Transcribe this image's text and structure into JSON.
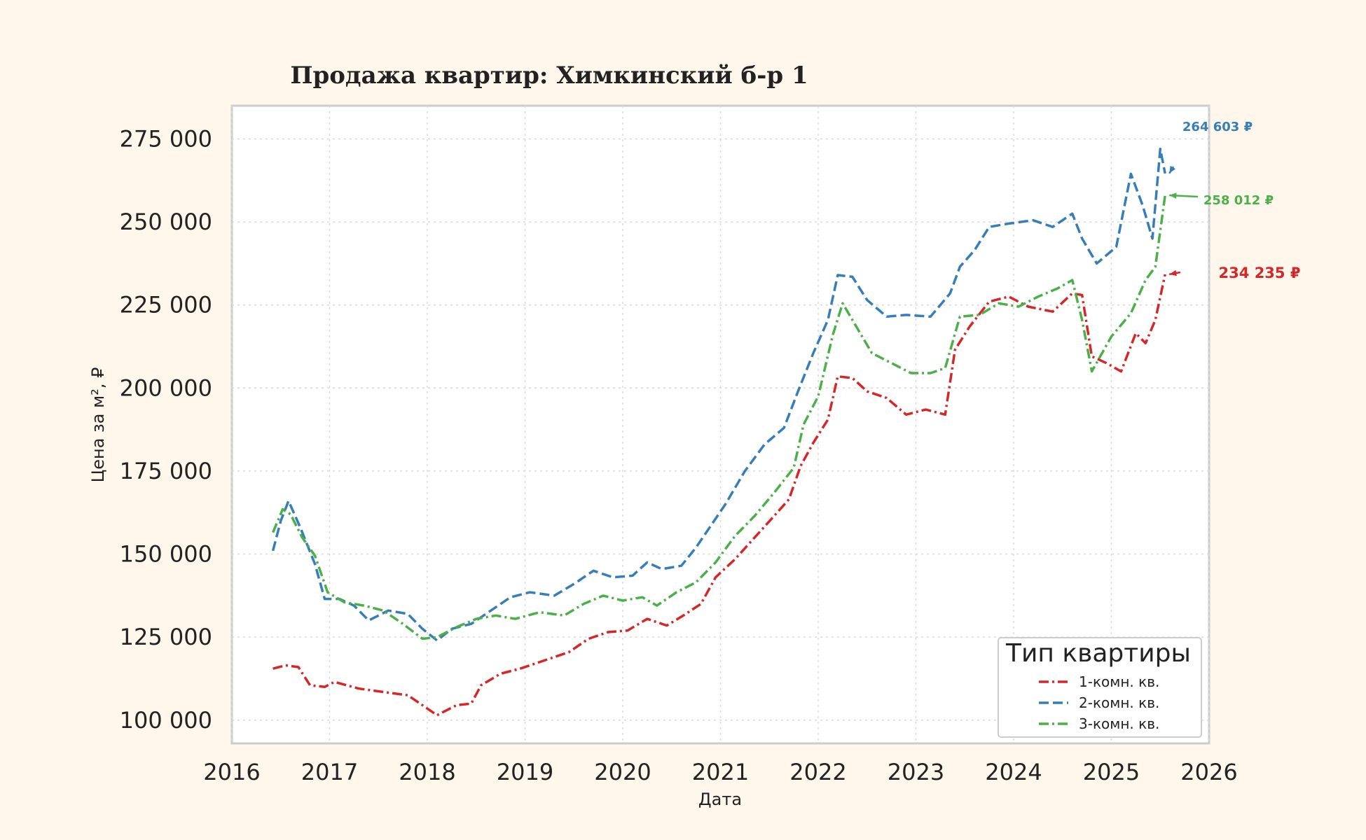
{
  "chart_data": {
    "type": "line",
    "title": "Продажа квартир: Химкинский б-р 1",
    "xlabel": "Дата",
    "ylabel": "Цена за м², ₽",
    "xlim": [
      2016,
      2026
    ],
    "ylim": [
      93000,
      285000
    ],
    "x_ticks": [
      "2016",
      "2017",
      "2018",
      "2019",
      "2020",
      "2021",
      "2022",
      "2023",
      "2024",
      "2025",
      "2026"
    ],
    "y_ticks": [
      "100 000",
      "125 000",
      "150 000",
      "175 000",
      "200 000",
      "225 000",
      "250 000",
      "275 000"
    ],
    "grid": true,
    "legend": {
      "title": "Тип квартиры",
      "placement": "bottom-right",
      "entries": [
        "1-комн. кв.",
        "2-комн. кв.",
        "3-комн. кв."
      ]
    },
    "series": [
      {
        "name": "1-комн. кв.",
        "color": "#d62728",
        "dash": "dashdot",
        "points": [
          [
            2016.42,
            115500
          ],
          [
            2016.55,
            116500
          ],
          [
            2016.68,
            116000
          ],
          [
            2016.8,
            110500
          ],
          [
            2016.95,
            110000
          ],
          [
            2017.05,
            111500
          ],
          [
            2017.3,
            109500
          ],
          [
            2017.55,
            108500
          ],
          [
            2017.8,
            107500
          ],
          [
            2017.95,
            104500
          ],
          [
            2018.1,
            101500
          ],
          [
            2018.3,
            104500
          ],
          [
            2018.45,
            105000
          ],
          [
            2018.55,
            110500
          ],
          [
            2018.75,
            114000
          ],
          [
            2018.95,
            115500
          ],
          [
            2019.2,
            118000
          ],
          [
            2019.45,
            120500
          ],
          [
            2019.65,
            124500
          ],
          [
            2019.85,
            126500
          ],
          [
            2020.05,
            127000
          ],
          [
            2020.25,
            130500
          ],
          [
            2020.45,
            128500
          ],
          [
            2020.62,
            131500
          ],
          [
            2020.8,
            135000
          ],
          [
            2020.95,
            143000
          ],
          [
            2021.15,
            148500
          ],
          [
            2021.35,
            155000
          ],
          [
            2021.55,
            161500
          ],
          [
            2021.7,
            166500
          ],
          [
            2021.82,
            176500
          ],
          [
            2021.95,
            183500
          ],
          [
            2022.1,
            190500
          ],
          [
            2022.2,
            203500
          ],
          [
            2022.35,
            203000
          ],
          [
            2022.5,
            199000
          ],
          [
            2022.7,
            197000
          ],
          [
            2022.9,
            192000
          ],
          [
            2023.1,
            193500
          ],
          [
            2023.3,
            192000
          ],
          [
            2023.4,
            211500
          ],
          [
            2023.55,
            218500
          ],
          [
            2023.75,
            226000
          ],
          [
            2023.95,
            227500
          ],
          [
            2024.15,
            224500
          ],
          [
            2024.4,
            223000
          ],
          [
            2024.6,
            228500
          ],
          [
            2024.7,
            228000
          ],
          [
            2024.8,
            209500
          ],
          [
            2024.95,
            207500
          ],
          [
            2025.1,
            205000
          ],
          [
            2025.25,
            216500
          ],
          [
            2025.35,
            213500
          ],
          [
            2025.45,
            220500
          ],
          [
            2025.55,
            234235
          ]
        ]
      },
      {
        "name": "2-комн. кв.",
        "color": "#377eb8",
        "dash": "dashed",
        "points": [
          [
            2016.42,
            151000
          ],
          [
            2016.5,
            160000
          ],
          [
            2016.58,
            166000
          ],
          [
            2016.7,
            158000
          ],
          [
            2016.85,
            147000
          ],
          [
            2016.95,
            136500
          ],
          [
            2017.1,
            136500
          ],
          [
            2017.25,
            134500
          ],
          [
            2017.4,
            130000
          ],
          [
            2017.6,
            133000
          ],
          [
            2017.8,
            132000
          ],
          [
            2017.95,
            127500
          ],
          [
            2018.1,
            124000
          ],
          [
            2018.25,
            127500
          ],
          [
            2018.45,
            129000
          ],
          [
            2018.65,
            133000
          ],
          [
            2018.85,
            137000
          ],
          [
            2019.05,
            138500
          ],
          [
            2019.3,
            137500
          ],
          [
            2019.5,
            141000
          ],
          [
            2019.7,
            145000
          ],
          [
            2019.9,
            143000
          ],
          [
            2020.1,
            143500
          ],
          [
            2020.25,
            147500
          ],
          [
            2020.4,
            145500
          ],
          [
            2020.6,
            146500
          ],
          [
            2020.75,
            152000
          ],
          [
            2020.9,
            158500
          ],
          [
            2021.05,
            165000
          ],
          [
            2021.25,
            175000
          ],
          [
            2021.45,
            183000
          ],
          [
            2021.65,
            188000
          ],
          [
            2021.8,
            199500
          ],
          [
            2021.95,
            210500
          ],
          [
            2022.1,
            220500
          ],
          [
            2022.2,
            234000
          ],
          [
            2022.35,
            233500
          ],
          [
            2022.5,
            226500
          ],
          [
            2022.7,
            221500
          ],
          [
            2022.9,
            222000
          ],
          [
            2023.15,
            221500
          ],
          [
            2023.35,
            228500
          ],
          [
            2023.45,
            236500
          ],
          [
            2023.6,
            241500
          ],
          [
            2023.75,
            248500
          ],
          [
            2023.95,
            249500
          ],
          [
            2024.2,
            250500
          ],
          [
            2024.4,
            248500
          ],
          [
            2024.6,
            252500
          ],
          [
            2024.7,
            245000
          ],
          [
            2024.85,
            237500
          ],
          [
            2025.05,
            242500
          ],
          [
            2025.2,
            264500
          ],
          [
            2025.32,
            255000
          ],
          [
            2025.42,
            245000
          ],
          [
            2025.5,
            272000
          ],
          [
            2025.55,
            264603
          ]
        ]
      },
      {
        "name": "3-комн. кв.",
        "color": "#4daf4a",
        "dash": "dashdot",
        "points": [
          [
            2016.42,
            156500
          ],
          [
            2016.52,
            163500
          ],
          [
            2016.6,
            162000
          ],
          [
            2016.72,
            155000
          ],
          [
            2016.85,
            149500
          ],
          [
            2016.98,
            138500
          ],
          [
            2017.15,
            135500
          ],
          [
            2017.35,
            134500
          ],
          [
            2017.55,
            133000
          ],
          [
            2017.75,
            129000
          ],
          [
            2017.95,
            124500
          ],
          [
            2018.1,
            125000
          ],
          [
            2018.3,
            128000
          ],
          [
            2018.5,
            130500
          ],
          [
            2018.7,
            131500
          ],
          [
            2018.9,
            130500
          ],
          [
            2019.15,
            132500
          ],
          [
            2019.4,
            131500
          ],
          [
            2019.6,
            135000
          ],
          [
            2019.8,
            137500
          ],
          [
            2020.0,
            136000
          ],
          [
            2020.2,
            137000
          ],
          [
            2020.35,
            134500
          ],
          [
            2020.55,
            138500
          ],
          [
            2020.75,
            141500
          ],
          [
            2020.95,
            147500
          ],
          [
            2021.15,
            155500
          ],
          [
            2021.35,
            161500
          ],
          [
            2021.55,
            168500
          ],
          [
            2021.75,
            176000
          ],
          [
            2021.85,
            189000
          ],
          [
            2022.0,
            197500
          ],
          [
            2022.15,
            216000
          ],
          [
            2022.25,
            225500
          ],
          [
            2022.4,
            218000
          ],
          [
            2022.55,
            210500
          ],
          [
            2022.75,
            207500
          ],
          [
            2022.95,
            204500
          ],
          [
            2023.15,
            204500
          ],
          [
            2023.3,
            206000
          ],
          [
            2023.45,
            221500
          ],
          [
            2023.65,
            222000
          ],
          [
            2023.85,
            225500
          ],
          [
            2024.05,
            224500
          ],
          [
            2024.25,
            227500
          ],
          [
            2024.45,
            230000
          ],
          [
            2024.6,
            232500
          ],
          [
            2024.7,
            220500
          ],
          [
            2024.8,
            205000
          ],
          [
            2025.0,
            215500
          ],
          [
            2025.2,
            222500
          ],
          [
            2025.35,
            232500
          ],
          [
            2025.45,
            236500
          ],
          [
            2025.55,
            258012
          ]
        ]
      }
    ],
    "annotations": [
      {
        "text": "264 603 ₽",
        "series": "2-комн. кв.",
        "x": 2025.55,
        "y": 264603
      },
      {
        "text": "258 012 ₽",
        "series": "3-комн. кв.",
        "x": 2025.55,
        "y": 258012
      },
      {
        "text": "234 235 ₽",
        "series": "1-комн. кв.",
        "x": 2025.55,
        "y": 234235
      }
    ]
  }
}
